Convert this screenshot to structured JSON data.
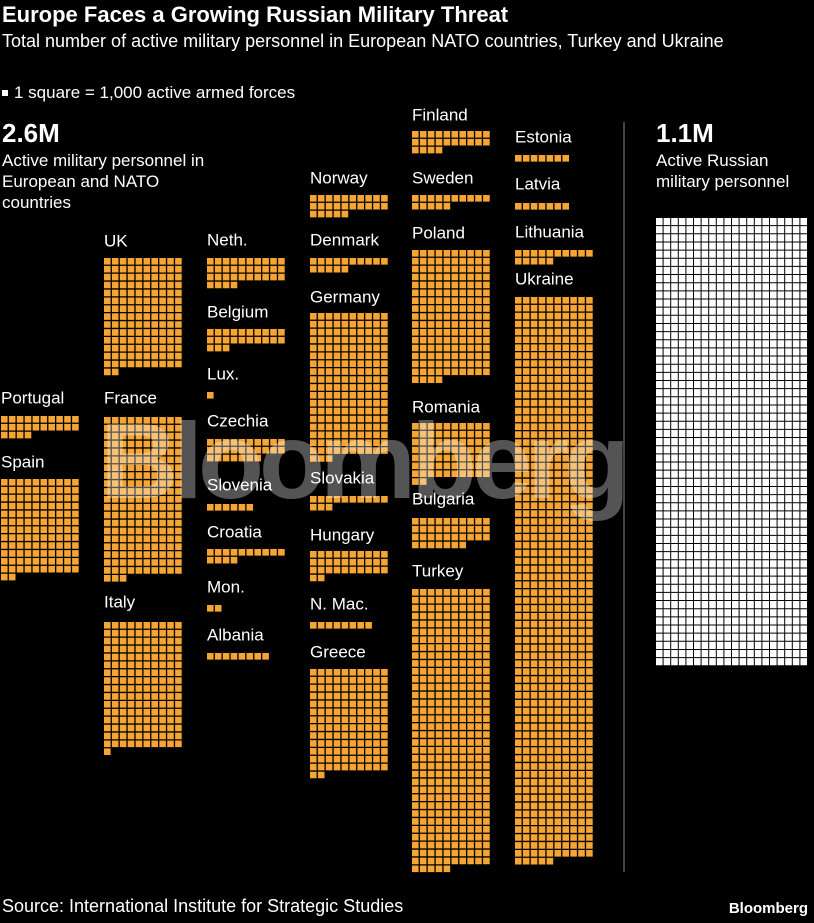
{
  "title": "Europe Faces a Growing Russian Military Threat",
  "subtitle": "Total number of active military personnel in European NATO countries, Turkey and Ukraine",
  "legend": "1 square = 1,000 active armed forces",
  "source": "Source: International Institute for Strategic Studies",
  "brand": "Bloomberg",
  "chart_data": {
    "type": "waffle",
    "europe": {
      "total_label": "2.6M",
      "label": "Active military personnel in European and NATO countries",
      "color": "#f5a533",
      "countries": [
        {
          "name": "Portugal",
          "value": 24
        },
        {
          "name": "Spain",
          "value": 122
        },
        {
          "name": "UK",
          "value": 142
        },
        {
          "name": "France",
          "value": 203
        },
        {
          "name": "Italy",
          "value": 161
        },
        {
          "name": "Neth.",
          "value": 34
        },
        {
          "name": "Belgium",
          "value": 23
        },
        {
          "name": "Lux.",
          "value": 1
        },
        {
          "name": "Czechia",
          "value": 27
        },
        {
          "name": "Slovenia",
          "value": 6
        },
        {
          "name": "Croatia",
          "value": 14
        },
        {
          "name": "Mon.",
          "value": 2
        },
        {
          "name": "Albania",
          "value": 8
        },
        {
          "name": "Norway",
          "value": 25
        },
        {
          "name": "Denmark",
          "value": 15
        },
        {
          "name": "Germany",
          "value": 183
        },
        {
          "name": "Slovakia",
          "value": 13
        },
        {
          "name": "Hungary",
          "value": 32
        },
        {
          "name": "N. Mac.",
          "value": 8
        },
        {
          "name": "Greece",
          "value": 132
        },
        {
          "name": "Finland",
          "value": 24
        },
        {
          "name": "Sweden",
          "value": 15
        },
        {
          "name": "Poland",
          "value": 164
        },
        {
          "name": "Romania",
          "value": 72
        },
        {
          "name": "Bulgaria",
          "value": 37
        },
        {
          "name": "Turkey",
          "value": 355
        },
        {
          "name": "Estonia",
          "value": 7
        },
        {
          "name": "Latvia",
          "value": 7
        },
        {
          "name": "Lithuania",
          "value": 15
        },
        {
          "name": "Ukraine",
          "value": 715
        }
      ]
    },
    "russia": {
      "total_label": "1.1M",
      "label": "Active Russian military personnel",
      "color": "#ffffff",
      "value": 1100
    }
  }
}
